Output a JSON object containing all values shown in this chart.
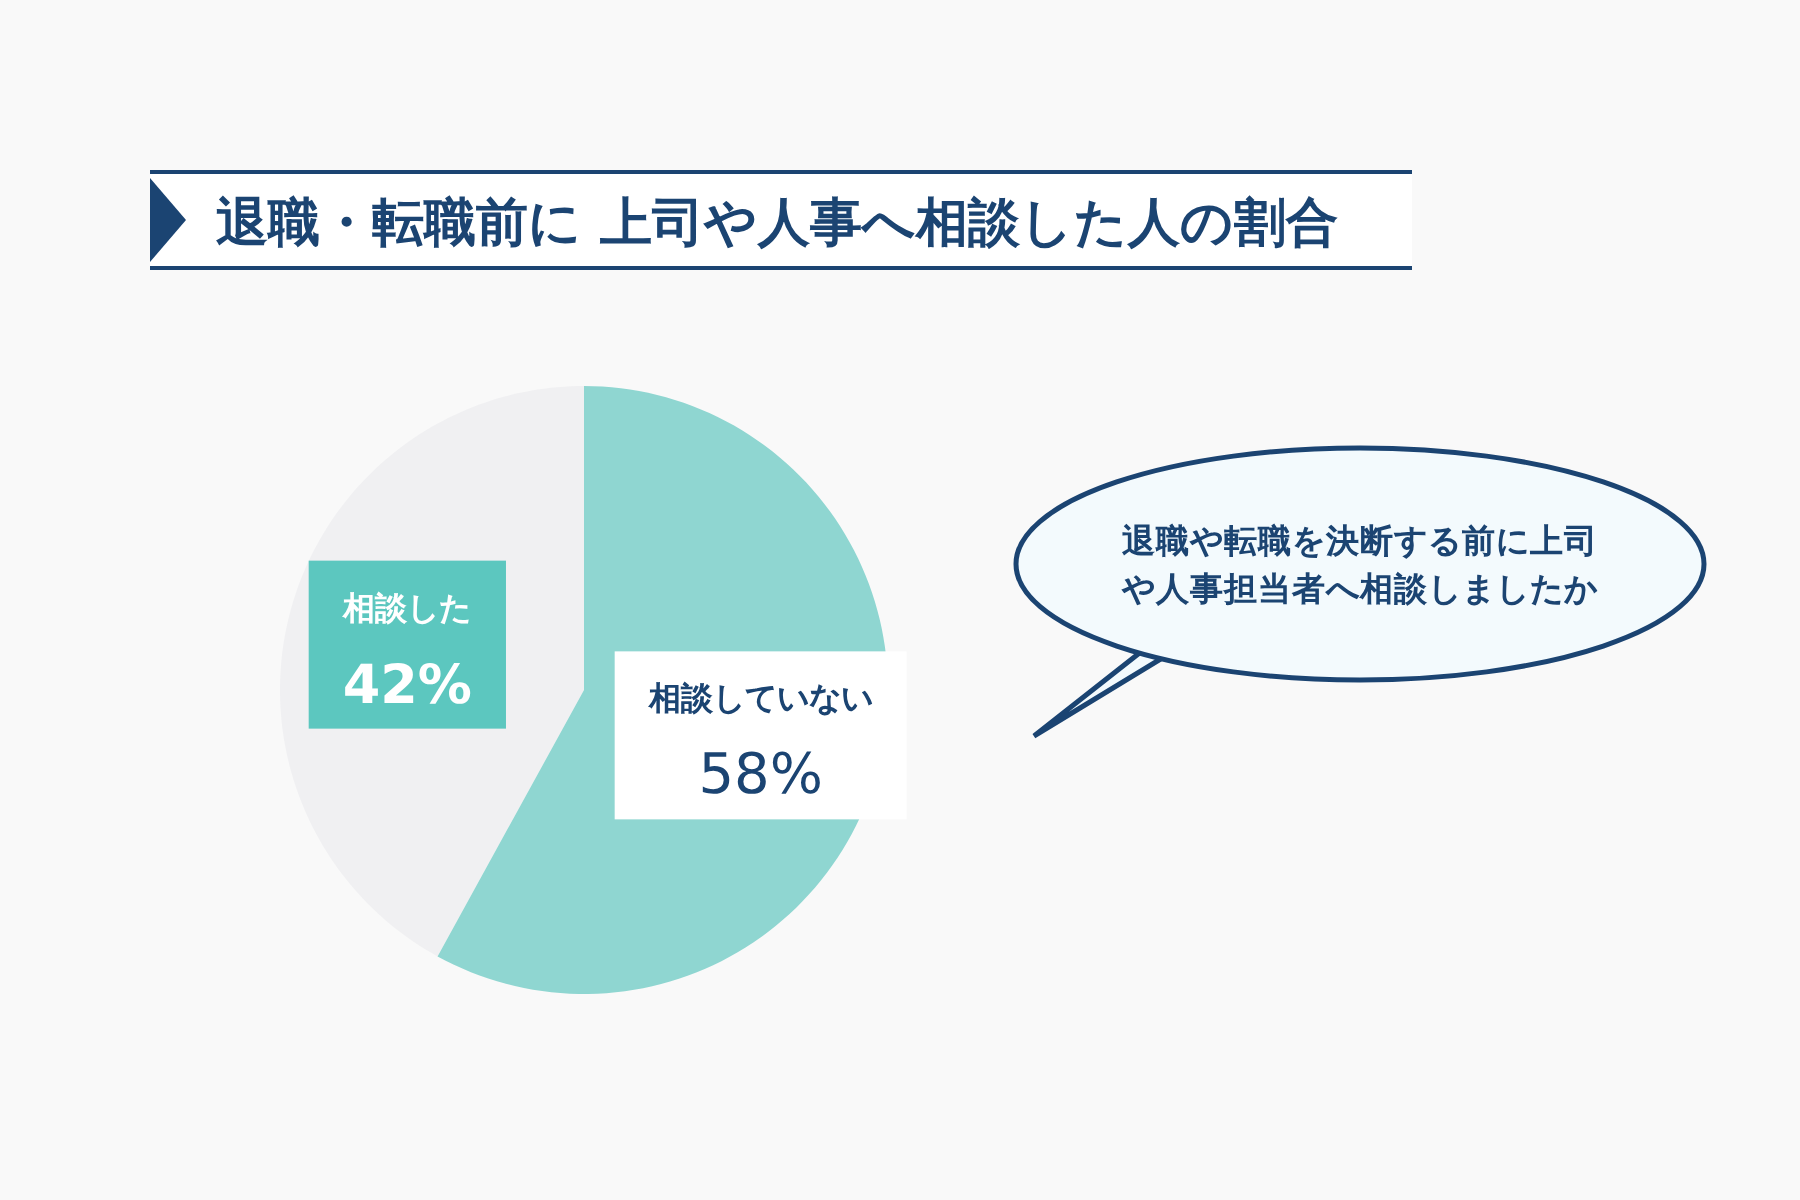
{
  "chart_data": {
    "type": "pie",
    "title": "退職・転職前に 上司や人事へ相談した人の割合",
    "categories": [
      "相談した",
      "相談していない"
    ],
    "values": [
      42,
      58
    ],
    "colors": [
      "#f0f0f2",
      "#8fd6d1"
    ],
    "value_labels": [
      "42%",
      "58%"
    ],
    "annotations": [
      "退職や転職を決断する前に上司や人事担当者へ相談しましたか"
    ]
  }
}
